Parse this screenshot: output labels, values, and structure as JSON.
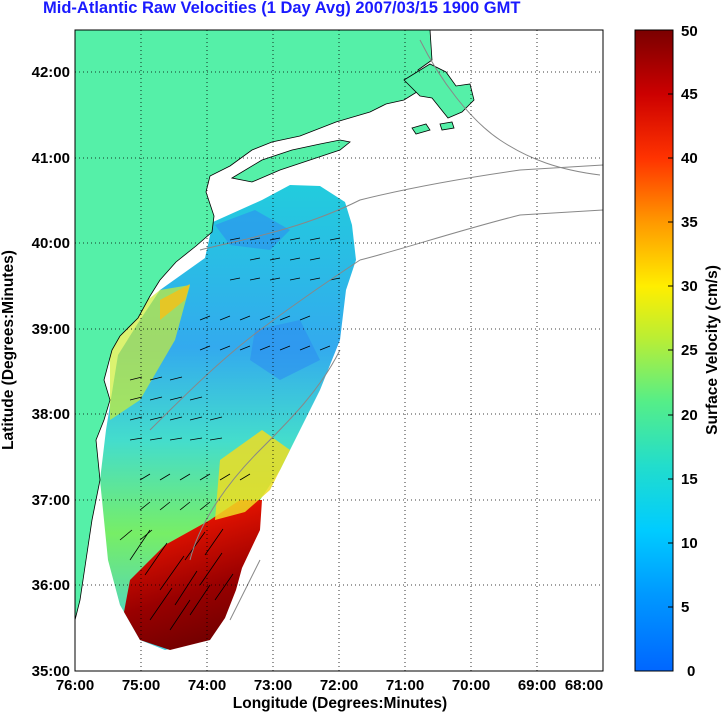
{
  "title": "Mid-Atlantic Raw Velocities (1 Day Avg) 2007/03/15 1900 GMT",
  "map": {
    "xlabel": "Longitude (Degrees:Minutes)",
    "ylabel": "Latitude (Degrees:Minutes)",
    "x_ticks": [
      "76:00",
      "75:00",
      "74:00",
      "73:00",
      "72:00",
      "71:00",
      "70:00",
      "69:00",
      "68:00"
    ],
    "y_ticks": [
      "42:00",
      "41:00",
      "40:00",
      "39:00",
      "38:00",
      "37:00",
      "36:00",
      "35:00"
    ],
    "lon_range": [
      -76,
      -68
    ],
    "lat_range": [
      35,
      42.5
    ],
    "land_color": "#55f0a8",
    "grid": true
  },
  "colorbar": {
    "label": "Surface Velocity (cm/s)",
    "min": 0,
    "max": 50,
    "ticks": [
      "50",
      "45",
      "40",
      "35",
      "30",
      "25",
      "20",
      "15",
      "10",
      "5",
      "0"
    ],
    "colormap": "jet"
  }
}
